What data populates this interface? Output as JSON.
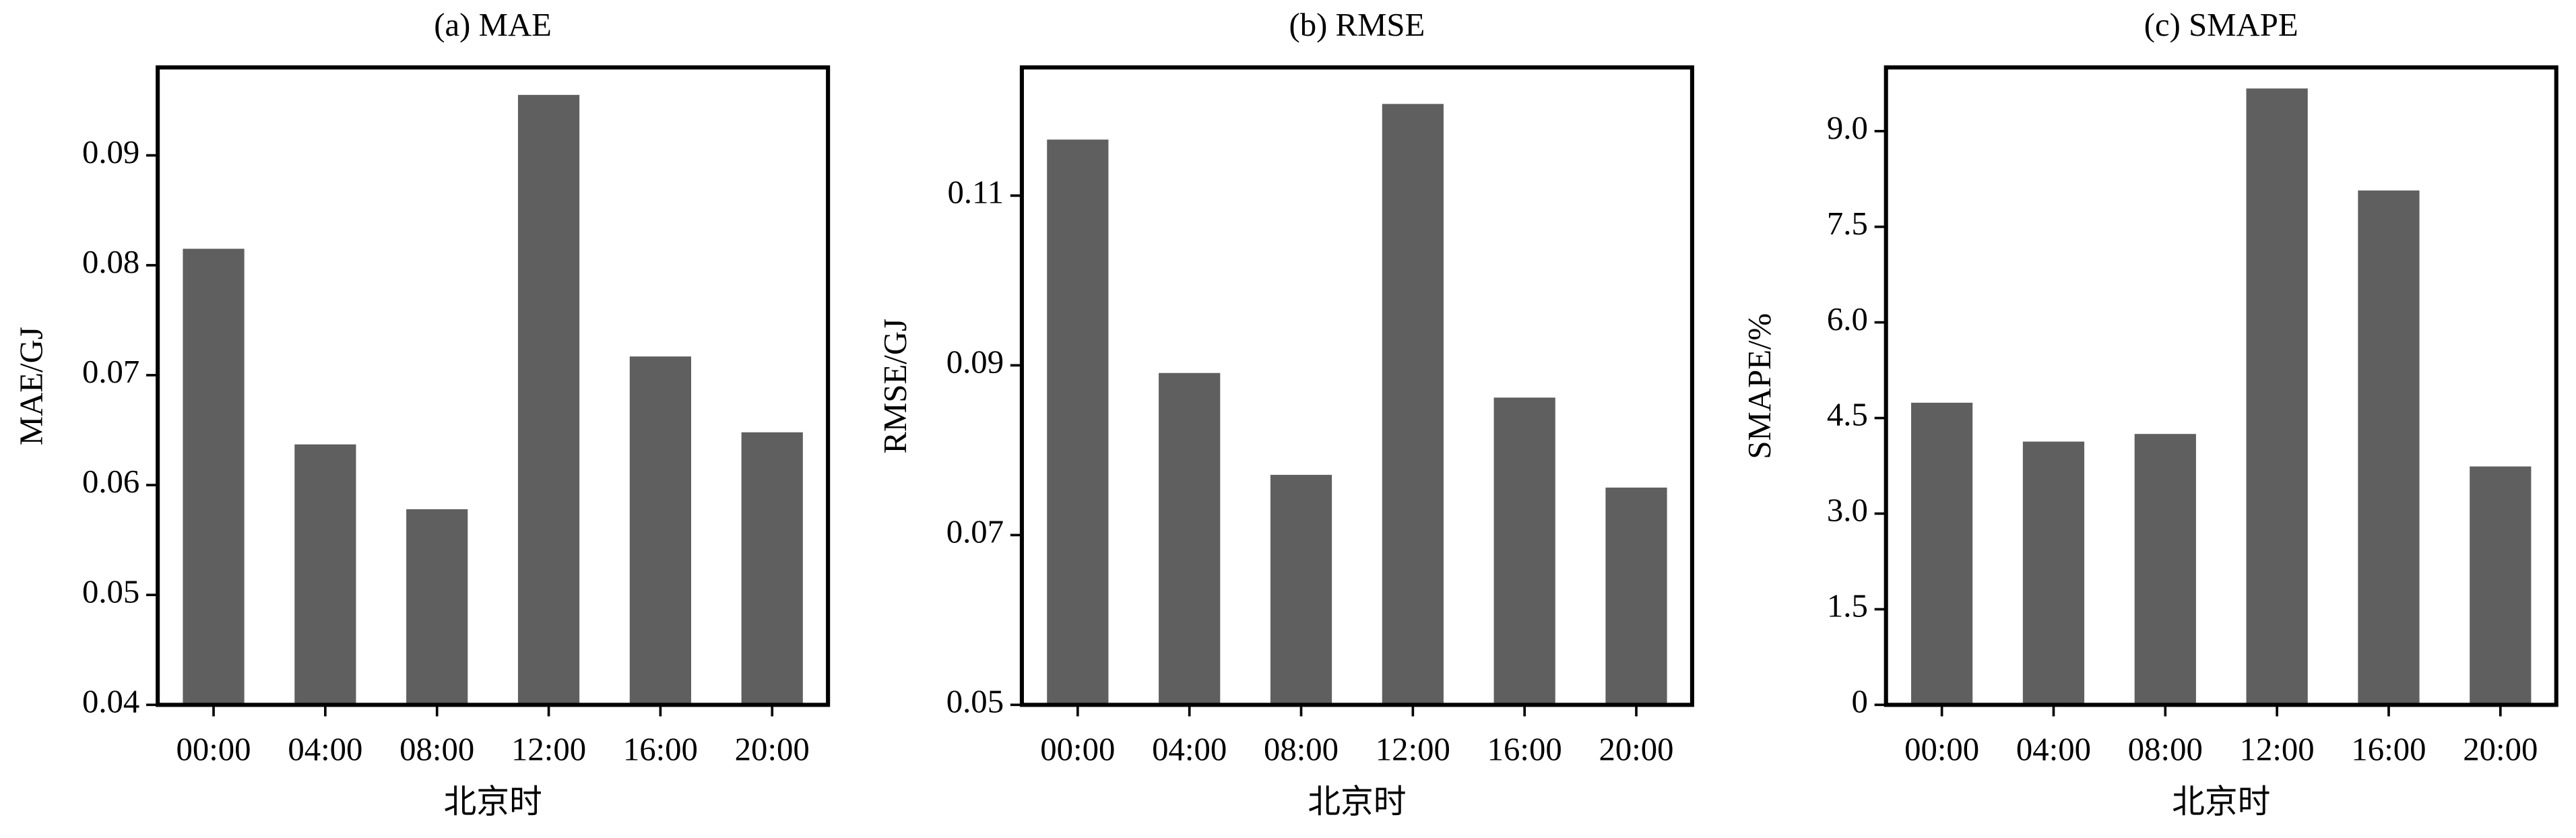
{
  "chart_data": [
    {
      "type": "bar",
      "title": "(a) MAE",
      "x_label": "北京时",
      "y_label": "MAE/GJ",
      "categories": [
        "00:00",
        "04:00",
        "08:00",
        "12:00",
        "16:00",
        "20:00"
      ],
      "values": [
        0.0815,
        0.0637,
        0.0578,
        0.0955,
        0.0717,
        0.0648
      ],
      "color": "#5f5f5f",
      "ylim": [
        0.04,
        0.098
      ],
      "yticks": [
        0.04,
        0.05,
        0.06,
        0.07,
        0.08,
        0.09
      ]
    },
    {
      "type": "bar",
      "title": "(b) RMSE",
      "x_label": "北京时",
      "y_label": "RMSE/GJ",
      "categories": [
        "00:00",
        "04:00",
        "08:00",
        "12:00",
        "16:00",
        "20:00"
      ],
      "values": [
        0.1166,
        0.0891,
        0.0771,
        0.1208,
        0.0862,
        0.0756
      ],
      "color": "#5f5f5f",
      "ylim": [
        0.05,
        0.1251
      ],
      "yticks": [
        0.05,
        0.07,
        0.09,
        0.11
      ]
    },
    {
      "type": "bar",
      "title": "(c) SMAPE",
      "x_label": "北京时",
      "y_label": "SMAPE/%",
      "categories": [
        "00:00",
        "04:00",
        "08:00",
        "12:00",
        "16:00",
        "20:00"
      ],
      "values": [
        4.74,
        4.13,
        4.25,
        9.67,
        8.07,
        3.74
      ],
      "color": "#5f5f5f",
      "ylim": [
        0,
        10.0
      ],
      "yticks": [
        0,
        1.5,
        {
          "value": 3,
          "label": "3.0"
        },
        4.5,
        {
          "value": 6,
          "label": "6.0"
        },
        7.5,
        {
          "value": 9,
          "label": "9.0"
        }
      ]
    }
  ]
}
